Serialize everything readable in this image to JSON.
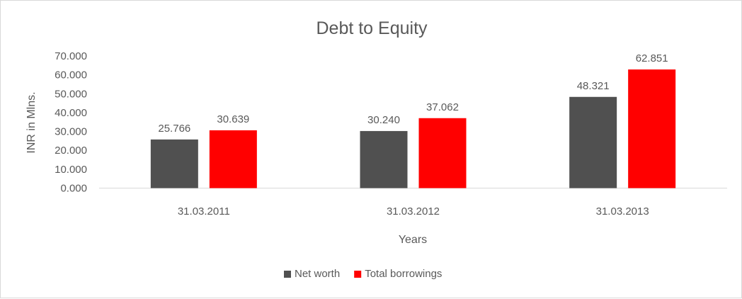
{
  "chart_data": {
    "type": "bar",
    "title": "Debt to Equity",
    "xlabel": "Years",
    "ylabel": "INR in Mlns.",
    "categories": [
      "31.03.2011",
      "31.03.2012",
      "31.03.2013"
    ],
    "series": [
      {
        "name": "Net worth",
        "color": "#505050",
        "values": [
          25.766,
          30.24,
          48.321
        ],
        "labels": [
          "25.766",
          "30.240",
          "48.321"
        ]
      },
      {
        "name": "Total borrowings",
        "color": "#ff0000",
        "values": [
          30.639,
          37.062,
          62.851
        ],
        "labels": [
          "30.639",
          "37.062",
          "62.851"
        ]
      }
    ],
    "ylim": [
      0,
      70
    ],
    "yticks": [
      "0.000",
      "10.000",
      "20.000",
      "30.000",
      "40.000",
      "50.000",
      "60.000",
      "70.000"
    ],
    "grid": false,
    "legend_position": "bottom"
  }
}
